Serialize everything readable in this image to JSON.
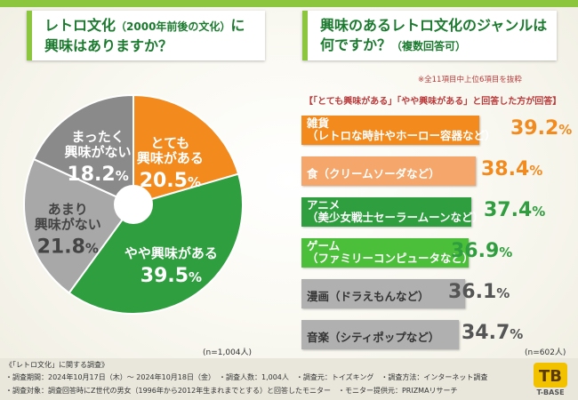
{
  "left": {
    "title_line1": "レトロ文化",
    "title_paren": "（2000年前後の文化）",
    "title_tail": "に",
    "title_line2": "興味はありますか？",
    "n_label": "(n=1,004人)"
  },
  "right": {
    "title_line1": "興味のあるレトロ文化のジャンルは",
    "title_line2a": "何ですか？",
    "title_line2b": "（複数回答可）",
    "note": "※全11項目中上位6項目を抜粋",
    "subhead": "【「とても興味がある」「やや興味がある」と回答した方が回答】",
    "n_label": "(n=602人)"
  },
  "footer": {
    "line0": "《「レトロ文化」に関する調査》",
    "line1": "・調査期間：2024年10月17日（木）～ 2024年10月18日（金）　・調査人数：1,004人　・調査元：トイズキング　・調査方法：インターネット調査",
    "line2": "・調査対象：調査回答時にZ世代の男女（1996年から2012年生まれまでとする）と回答したモニター　・モニター提供元：PRIZMAリサーチ"
  },
  "logo": {
    "text": "T-BASE",
    "mark": "TB"
  },
  "chart_data": [
    {
      "type": "pie",
      "title": "レトロ文化（2000年前後の文化）に興味はありますか？",
      "categories": [
        "とても興味がある",
        "やや興味がある",
        "あまり興味がない",
        "まったく興味がない"
      ],
      "values": [
        20.5,
        39.5,
        21.8,
        18.2
      ],
      "units": "%",
      "colors": [
        "#f28a1e",
        "#2e9e3e",
        "#a8a8a8",
        "#8a8a8a"
      ],
      "label_lines": [
        [
          "とても",
          "興味がある"
        ],
        [
          "やや興味がある"
        ],
        [
          "あまり",
          "興味がない"
        ],
        [
          "まったく",
          "興味がない"
        ]
      ],
      "value_labels": [
        [
          "20.5",
          "%"
        ],
        [
          "39.5",
          "%"
        ],
        [
          "21.8",
          "%"
        ],
        [
          "18.2",
          "%"
        ]
      ],
      "n": "n=1,004人"
    },
    {
      "type": "bar",
      "orientation": "horizontal",
      "title": "興味のあるレトロ文化のジャンルは何ですか？（複数回答可）",
      "categories": [
        "雑貨（レトロな時計やホーロー容器など）",
        "食（クリームソーダなど）",
        "アニメ（美少女戦士セーラームーンなど）",
        "ゲーム（ファミリーコンピュータなど）",
        "漫画（ドラえもんなど）",
        "音楽（シティポップなど）"
      ],
      "label_lines": [
        [
          "雑貨",
          "（レトロな時計やホーロー容器など）"
        ],
        [
          "食（クリームソーダなど）"
        ],
        [
          "アニメ",
          "（美少女戦士セーラームーンなど）"
        ],
        [
          "ゲーム",
          "（ファミリーコンピュータなど）"
        ],
        [
          "漫画（ドラえもんなど）"
        ],
        [
          "音楽（シティポップなど）"
        ]
      ],
      "values": [
        39.2,
        38.4,
        37.4,
        36.9,
        36.1,
        34.7
      ],
      "value_labels": [
        [
          "39.2",
          "%"
        ],
        [
          "38.4",
          "%"
        ],
        [
          "37.4",
          "%"
        ],
        [
          "36.9",
          "%"
        ],
        [
          "36.1",
          "%"
        ],
        [
          "34.7",
          "%"
        ]
      ],
      "units": "%",
      "bar_colors": [
        "#f28a1e",
        "#f5a66b",
        "#2e9e3e",
        "#4cbf3a",
        "#b0b0b0",
        "#b0b0b0"
      ],
      "label_colors": [
        "#ffffff",
        "#ffffff",
        "#ffffff",
        "#ffffff",
        "#333333",
        "#333333"
      ],
      "value_colors": [
        "#f28a1e",
        "#f28a1e",
        "#2e9e3e",
        "#2e9e3e",
        "#555555",
        "#555555"
      ],
      "n": "n=602人"
    }
  ]
}
